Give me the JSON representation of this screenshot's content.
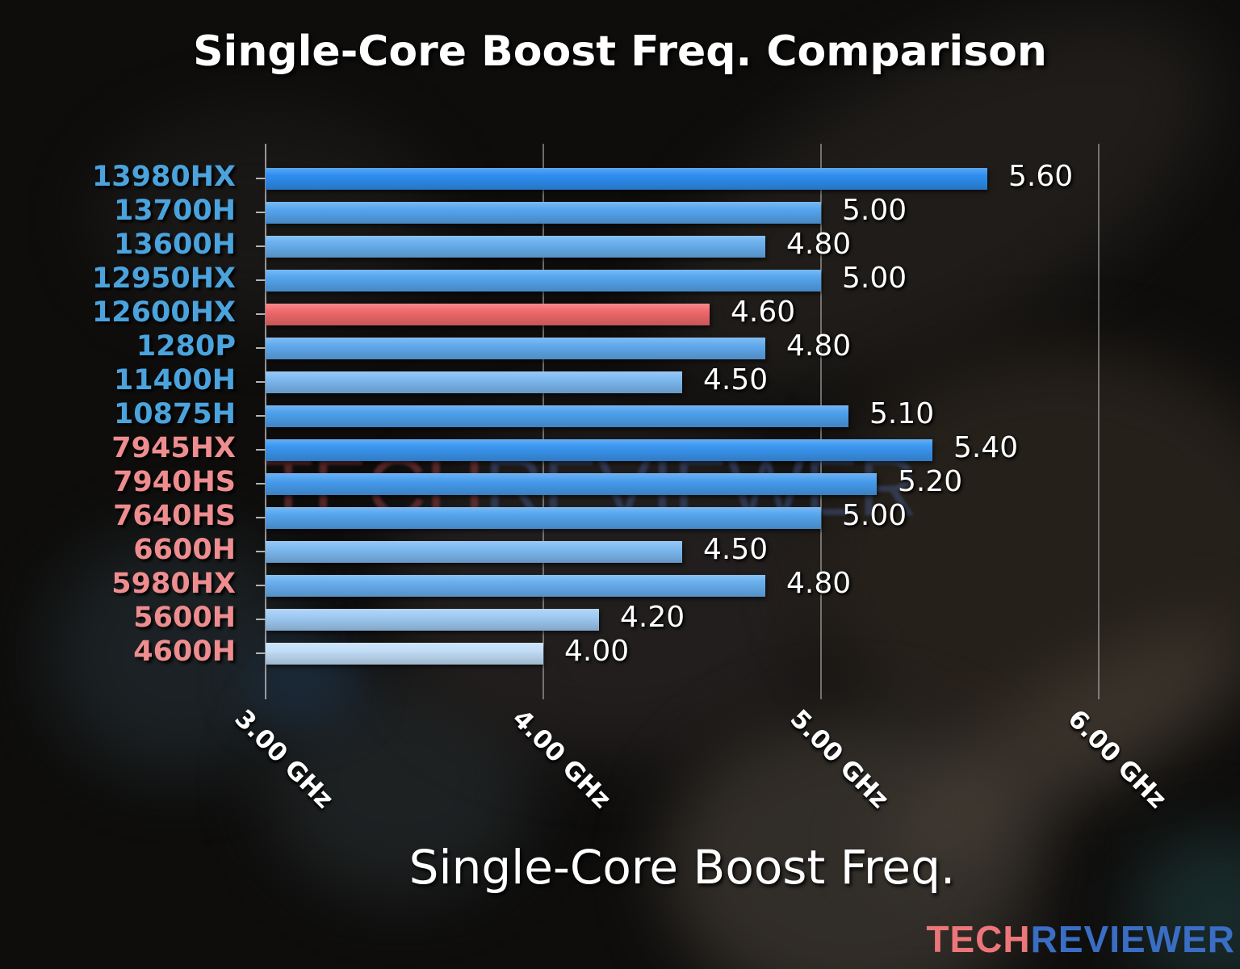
{
  "title": "Single-Core Boost Freq. Comparison",
  "axis_title": "Single-Core Boost Freq.",
  "watermark": {
    "tech": "TECH",
    "reviewer": "REVIEWER"
  },
  "logo": {
    "tech": "TECH",
    "reviewer": "REVIEWER",
    "tech_color": "#ed767a",
    "reviewer_color": "#3a6ec4"
  },
  "colors": {
    "background": "#0e0d0c",
    "intel_label": "#4ba3dd",
    "amd_label": "#ee8d8f",
    "highlight_bar": "#f0696c",
    "value_text": "#ffffff",
    "gridline": "#bababa",
    "title_text": "#ffffff"
  },
  "chart_data": {
    "type": "bar",
    "orientation": "horizontal",
    "title": "Single-Core Boost Freq. Comparison",
    "xlabel": "Single-Core Boost Freq.",
    "ylabel": "",
    "xlim": [
      3.0,
      6.5
    ],
    "grid": "vertical",
    "legend": "none",
    "x_ticks": [
      {
        "value": 3.0,
        "label": "3.00 GHz"
      },
      {
        "value": 4.0,
        "label": "4.00 GHz"
      },
      {
        "value": 5.0,
        "label": "5.00 GHz"
      },
      {
        "value": 6.0,
        "label": "6.00 GHz"
      }
    ],
    "bars": [
      {
        "category": "13980HX",
        "vendor": "intel",
        "value": 5.6,
        "value_label": "5.60",
        "bar_color": "#2e8ef0",
        "highlighted": false
      },
      {
        "category": "13700H",
        "vendor": "intel",
        "value": 5.0,
        "value_label": "5.00",
        "bar_color": "#55a5ee",
        "highlighted": false
      },
      {
        "category": "13600H",
        "vendor": "intel",
        "value": 4.8,
        "value_label": "4.80",
        "bar_color": "#68afef",
        "highlighted": false
      },
      {
        "category": "12950HX",
        "vendor": "intel",
        "value": 5.0,
        "value_label": "5.00",
        "bar_color": "#55a5ee",
        "highlighted": false
      },
      {
        "category": "12600HX",
        "vendor": "intel",
        "value": 4.6,
        "value_label": "4.60",
        "bar_color": "#f0696c",
        "highlighted": true
      },
      {
        "category": "1280P",
        "vendor": "intel",
        "value": 4.8,
        "value_label": "4.80",
        "bar_color": "#61aaee",
        "highlighted": false
      },
      {
        "category": "11400H",
        "vendor": "intel",
        "value": 4.5,
        "value_label": "4.50",
        "bar_color": "#7db9f1",
        "highlighted": false
      },
      {
        "category": "10875H",
        "vendor": "intel",
        "value": 5.1,
        "value_label": "5.10",
        "bar_color": "#4da0ed",
        "highlighted": false
      },
      {
        "category": "7945HX",
        "vendor": "amd",
        "value": 5.4,
        "value_label": "5.40",
        "bar_color": "#3a96f0",
        "highlighted": false
      },
      {
        "category": "7940HS",
        "vendor": "amd",
        "value": 5.2,
        "value_label": "5.20",
        "bar_color": "#479dee",
        "highlighted": false
      },
      {
        "category": "7640HS",
        "vendor": "amd",
        "value": 5.0,
        "value_label": "5.00",
        "bar_color": "#55a5ee",
        "highlighted": false
      },
      {
        "category": "6600H",
        "vendor": "amd",
        "value": 4.5,
        "value_label": "4.50",
        "bar_color": "#7db9f1",
        "highlighted": false
      },
      {
        "category": "5980HX",
        "vendor": "amd",
        "value": 4.8,
        "value_label": "4.80",
        "bar_color": "#68afef",
        "highlighted": false
      },
      {
        "category": "5600H",
        "vendor": "amd",
        "value": 4.2,
        "value_label": "4.20",
        "bar_color": "#a0cbf4",
        "highlighted": false
      },
      {
        "category": "4600H",
        "vendor": "amd",
        "value": 4.0,
        "value_label": "4.00",
        "bar_color": "#c2def8",
        "highlighted": false
      }
    ]
  }
}
